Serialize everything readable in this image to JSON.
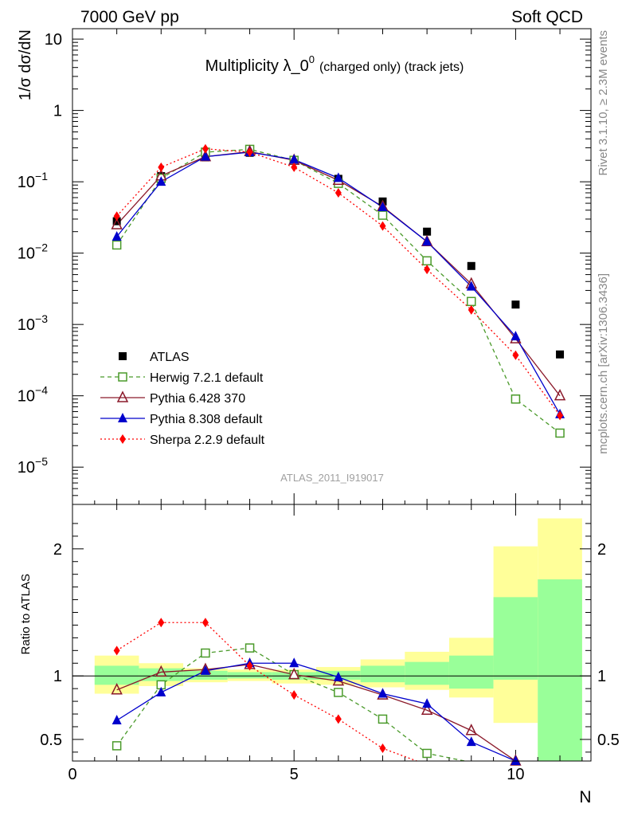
{
  "chart_data": {
    "type": "scatter",
    "header_left": "7000 GeV pp",
    "header_right": "Soft QCD",
    "title_main": "Multiplicity λ_0",
    "title_sup": "0",
    "title_tail": "(charged only) (track jets)",
    "ylabel": "1/σ dσ/dN",
    "ratio_ylabel": "Ratio to ATLAS",
    "xlabel": "N",
    "watermark": "ATLAS_2011_I919017",
    "side_label_top": "Rivet 3.1.10, ≥ 2.3M events",
    "side_label_bottom": "mcplots.cern.ch [arXiv:1306.3436]",
    "xlim": [
      0,
      11.7
    ],
    "ylim": [
      3e-06,
      14
    ],
    "ylog": true,
    "ratio_ylim": [
      0.33,
      2.35
    ],
    "x_ticks": [
      0,
      5,
      10
    ],
    "y_ticks": [
      "10",
      "1",
      "10^-1",
      "10^-2",
      "10^-3",
      "10^-4",
      "10^-5"
    ],
    "ratio_ticks": [
      0.5,
      1,
      2
    ],
    "legend_position": "bottom-left",
    "x": [
      1,
      2,
      3,
      4,
      5,
      6,
      7,
      8,
      9,
      10,
      11
    ],
    "band_inner": [
      [
        0.93,
        1.08
      ],
      [
        0.96,
        1.06
      ],
      [
        0.97,
        1.04
      ],
      [
        0.98,
        1.03
      ],
      [
        0.97,
        1.03
      ],
      [
        0.97,
        1.04
      ],
      [
        0.95,
        1.08
      ],
      [
        0.93,
        1.11
      ],
      [
        0.9,
        1.16
      ],
      [
        0.97,
        1.62
      ],
      [
        0.33,
        1.76
      ]
    ],
    "band_outer": [
      [
        0.86,
        1.16
      ],
      [
        0.92,
        1.1
      ],
      [
        0.95,
        1.06
      ],
      [
        0.96,
        1.05
      ],
      [
        0.94,
        1.05
      ],
      [
        0.93,
        1.07
      ],
      [
        0.91,
        1.13
      ],
      [
        0.89,
        1.19
      ],
      [
        0.83,
        1.3
      ],
      [
        0.63,
        2.02
      ],
      [
        0.33,
        2.24
      ]
    ],
    "series": [
      {
        "name": "ATLAS",
        "marker": "square-filled",
        "color": "#000000",
        "dash": "none",
        "values": [
          0.028,
          0.12,
          0.22,
          0.255,
          0.198,
          0.11,
          0.053,
          0.02,
          0.0066,
          0.0019,
          0.00038
        ],
        "ratio": [
          1,
          1,
          1,
          1,
          1,
          1,
          1,
          1,
          1,
          1,
          1
        ]
      },
      {
        "name": "Herwig 7.2.1 default",
        "marker": "square-open",
        "color": "#4a9a2a",
        "dash": "5,4",
        "values": [
          0.013,
          0.112,
          0.26,
          0.285,
          0.2,
          0.095,
          0.034,
          0.0078,
          0.0021,
          9e-05,
          3e-05
        ],
        "ratio": [
          0.45,
          0.93,
          1.18,
          1.22,
          1.01,
          0.87,
          0.66,
          0.39,
          0.32,
          0.047,
          0.079
        ],
        "err": [
          [
            0.021,
            4e-05
          ],
          [
            0.011,
            0.0001
          ]
        ]
      },
      {
        "name": "Pythia 6.428 370",
        "marker": "triangle-open",
        "color": "#8b1a2b",
        "dash": "none",
        "values": [
          0.025,
          0.121,
          0.225,
          0.265,
          0.2,
          0.105,
          0.045,
          0.0145,
          0.0037,
          0.00063,
          0.0001
        ],
        "ratio": [
          0.89,
          1.03,
          1.05,
          1.09,
          1.01,
          0.96,
          0.85,
          0.73,
          0.57,
          0.33,
          0.26
        ],
        "err": [
          [
            1.05,
            0.0042,
            0.0032
          ],
          [
            1.6,
            9e-05,
            4.5e-05
          ]
        ]
      },
      {
        "name": "Pythia 8.308 default",
        "marker": "triangle-filled",
        "color": "#0000cc",
        "dash": "none",
        "values": [
          0.017,
          0.1,
          0.225,
          0.26,
          0.205,
          0.113,
          0.044,
          0.0145,
          0.0034,
          0.00068,
          5.5e-05
        ],
        "ratio": [
          0.65,
          0.87,
          1.04,
          1.1,
          1.1,
          0.99,
          0.86,
          0.78,
          0.48,
          0.33,
          0.15
        ]
      },
      {
        "name": "Sherpa 2.2.9 default",
        "marker": "diamond-filled",
        "color": "#ff0000",
        "dash": "2,3",
        "values": [
          0.033,
          0.16,
          0.29,
          0.26,
          0.16,
          0.07,
          0.024,
          0.0059,
          0.0016,
          0.00037,
          5.3e-05
        ],
        "ratio": [
          1.2,
          1.42,
          1.42,
          1.08,
          0.85,
          0.66,
          0.43,
          0.3,
          0.24,
          0.19,
          0.14
        ]
      }
    ]
  }
}
